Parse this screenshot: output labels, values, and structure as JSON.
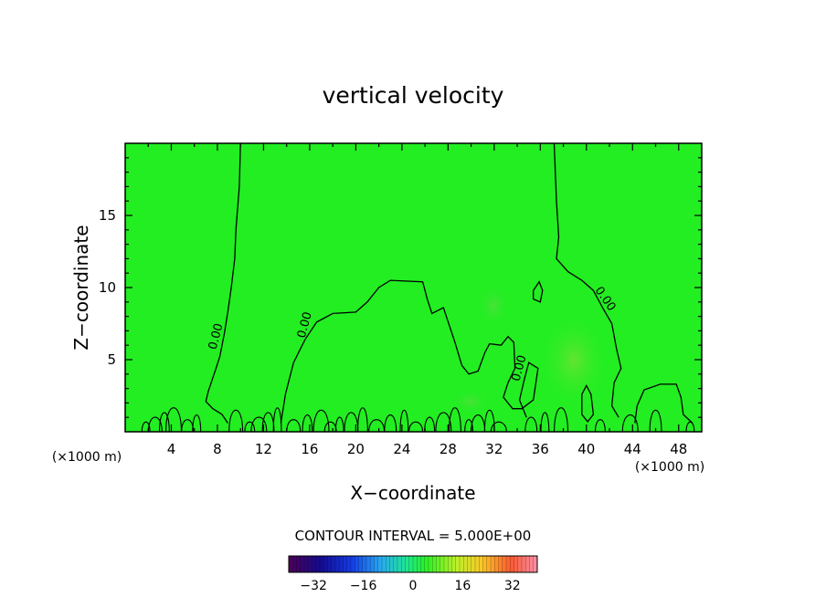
{
  "chart_data": {
    "type": "contour",
    "title": "vertical velocity",
    "xlabel": "X−coordinate",
    "ylabel": "Z−coordinate",
    "x_unit_left": "(×1000 m)",
    "x_unit_right": "(×1000 m)",
    "xlim": [
      0,
      50
    ],
    "ylim": [
      0,
      20
    ],
    "x_ticks": [
      4,
      8,
      12,
      16,
      20,
      24,
      28,
      32,
      36,
      40,
      44,
      48
    ],
    "y_ticks": [
      5,
      10,
      15
    ],
    "contour_label": "0.00",
    "contour_interval_text": "CONTOUR INTERVAL = 5.000E+00",
    "colorbar": {
      "min": -40,
      "max": 40,
      "ticks": [
        -32,
        -16,
        0,
        16,
        32
      ],
      "tick_labels": [
        "−32",
        "−16",
        "0",
        "16",
        "32"
      ]
    },
    "field_color": "#22ee22",
    "zero_contours": [
      [
        [
          10,
          20
        ],
        [
          9.9,
          17
        ],
        [
          9.6,
          14
        ],
        [
          9.5,
          12
        ],
        [
          9.2,
          10
        ],
        [
          8.9,
          8.3
        ],
        [
          8.6,
          6.8
        ],
        [
          8.2,
          5.2
        ],
        [
          7.8,
          4.2
        ],
        [
          7.2,
          2.8
        ],
        [
          7.0,
          2.1
        ],
        [
          7.6,
          1.6
        ],
        [
          8.4,
          1.2
        ],
        [
          8.9,
          0.6
        ]
      ],
      [
        [
          13.5,
          0.6
        ],
        [
          13.9,
          2.6
        ],
        [
          14.6,
          4.8
        ],
        [
          15.6,
          6.4
        ],
        [
          16.6,
          7.6
        ],
        [
          18.0,
          8.2
        ],
        [
          20.0,
          8.3
        ],
        [
          21.0,
          9.0
        ],
        [
          22.0,
          10.0
        ],
        [
          23.0,
          10.5
        ],
        [
          25.8,
          10.4
        ],
        [
          26.2,
          9.2
        ],
        [
          26.6,
          8.2
        ],
        [
          27.6,
          8.6
        ],
        [
          28.6,
          6.2
        ],
        [
          29.2,
          4.6
        ],
        [
          29.8,
          4.0
        ],
        [
          30.6,
          4.2
        ],
        [
          31.2,
          5.5
        ],
        [
          31.6,
          6.1
        ],
        [
          32.6,
          6.0
        ],
        [
          33.2,
          6.6
        ],
        [
          33.7,
          6.2
        ],
        [
          33.8,
          4.4
        ],
        [
          33.2,
          3.4
        ],
        [
          32.8,
          2.4
        ],
        [
          33.6,
          1.6
        ],
        [
          34.4,
          1.6
        ],
        [
          35.4,
          2.2
        ],
        [
          35.8,
          4.4
        ],
        [
          35.0,
          4.8
        ],
        [
          34.6,
          3.6
        ],
        [
          34.2,
          2.2
        ],
        [
          34.8,
          1.0
        ]
      ],
      [
        [
          37.2,
          20
        ],
        [
          37.4,
          16
        ],
        [
          37.6,
          13.5
        ],
        [
          37.4,
          12.0
        ],
        [
          38.4,
          11.1
        ],
        [
          39.6,
          10.5
        ],
        [
          40.6,
          9.8
        ],
        [
          41.4,
          8.6
        ],
        [
          42.2,
          7.5
        ],
        [
          42.6,
          5.8
        ],
        [
          43.0,
          4.4
        ],
        [
          42.4,
          3.4
        ],
        [
          42.2,
          1.8
        ],
        [
          42.8,
          1.0
        ]
      ],
      [
        [
          44.2,
          0.6
        ],
        [
          44.4,
          1.8
        ],
        [
          45.0,
          2.9
        ],
        [
          46.4,
          3.3
        ],
        [
          47.8,
          3.3
        ],
        [
          48.2,
          2.4
        ],
        [
          48.4,
          1.2
        ],
        [
          49.2,
          0.6
        ]
      ],
      [
        [
          39.6,
          2.6
        ],
        [
          40.0,
          3.2
        ],
        [
          40.4,
          2.6
        ],
        [
          40.6,
          1.2
        ],
        [
          40.1,
          0.7
        ],
        [
          39.6,
          1.2
        ],
        [
          39.6,
          2.6
        ]
      ],
      [
        [
          35.4,
          9.8
        ],
        [
          35.9,
          10.4
        ],
        [
          36.2,
          9.8
        ],
        [
          36.0,
          9.0
        ],
        [
          35.4,
          9.2
        ],
        [
          35.4,
          9.8
        ]
      ]
    ],
    "contour_label_positions": [
      [
        7.9,
        6.6
      ],
      [
        15.6,
        7.4
      ],
      [
        34.2,
        4.4
      ],
      [
        41.6,
        9.2
      ]
    ]
  }
}
